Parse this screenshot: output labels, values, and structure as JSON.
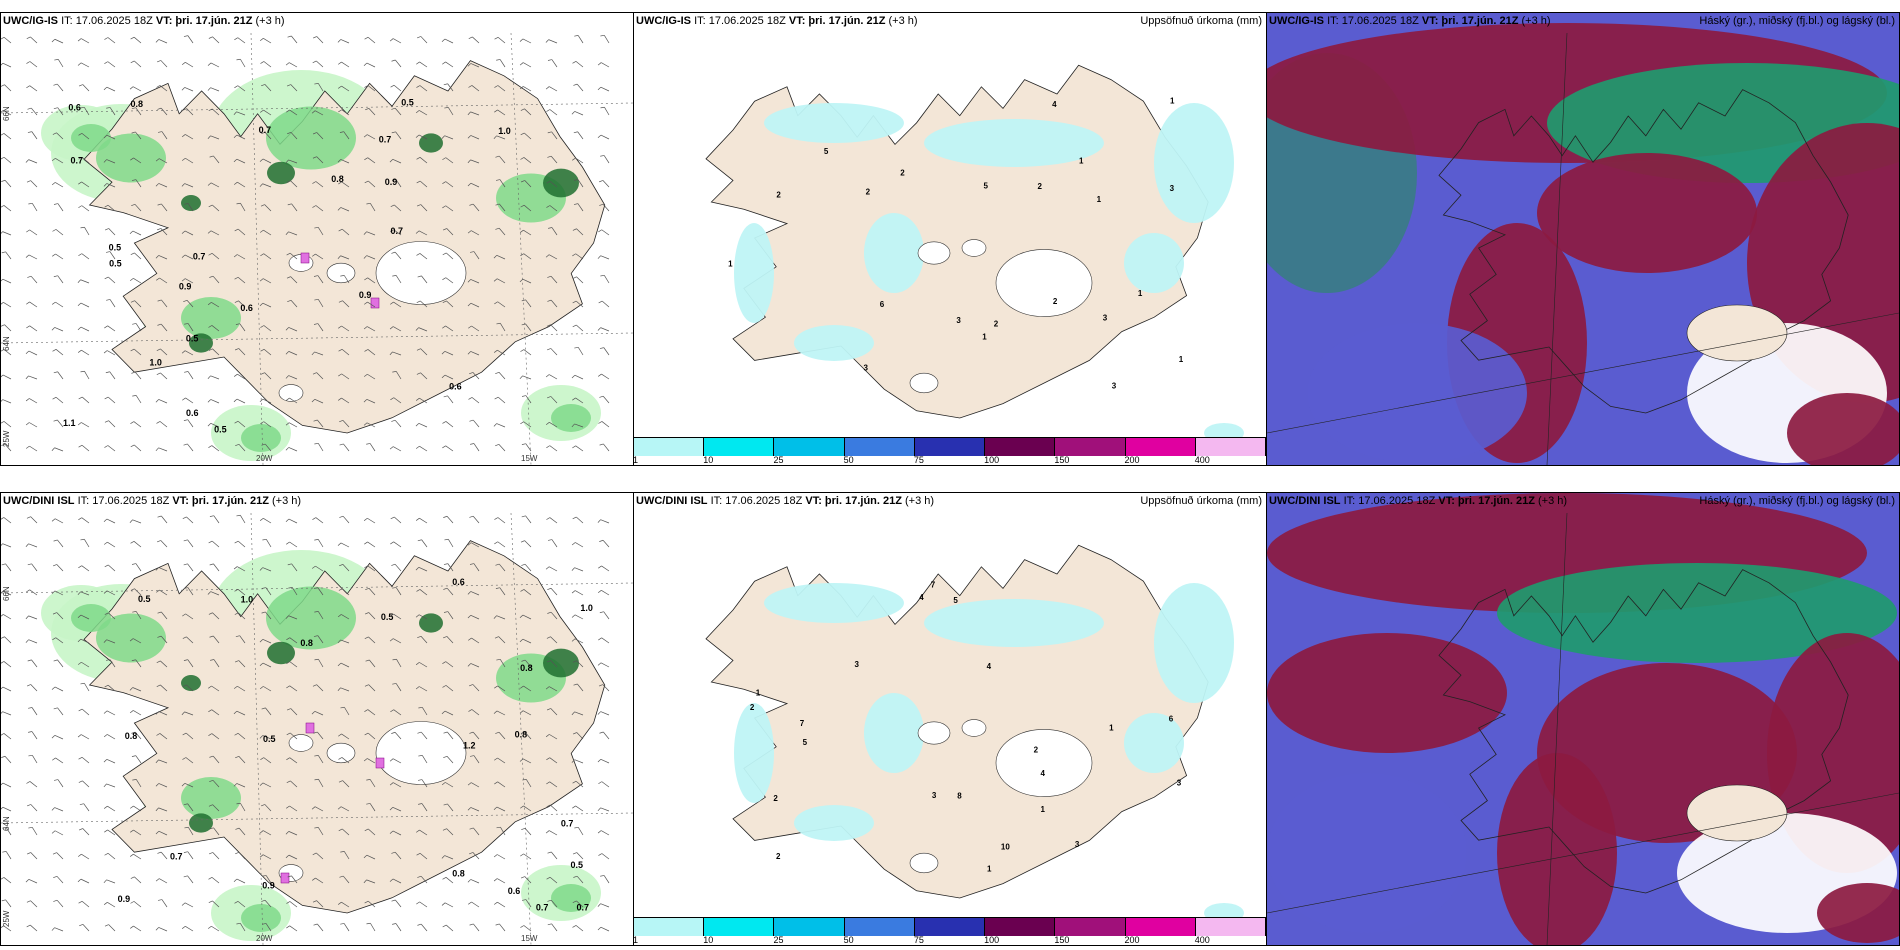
{
  "rows": [
    {
      "model": "UWC/IG-IS",
      "it": "IT: 17.06.2025 18Z",
      "vt_label": "VT:",
      "vt": "þri. 17.jún. 21Z",
      "lead": "(+3 h)"
    },
    {
      "model": "UWC/DINI ISL",
      "it": "IT: 17.06.2025 18Z",
      "vt_label": "VT:",
      "vt": "þri. 17.jún. 21Z",
      "lead": "(+3 h)"
    }
  ],
  "precip_title": "Uppsöfnuð úrkoma (mm)",
  "cloud_title": "Háský (gr.), miðský (fj.bl.) og lágský (bl.)",
  "legend": {
    "ticks": [
      "1",
      "10",
      "25",
      "50",
      "75",
      "100",
      "150",
      "200",
      "400"
    ],
    "colors": [
      "#b7f6f6",
      "#00e8f0",
      "#00bfe8",
      "#3a7be0",
      "#2830b0",
      "#6a0050",
      "#a0107a",
      "#e000a0",
      "#f4b8f0"
    ]
  },
  "coords": {
    "lat66": "66N",
    "lat64": "64N",
    "lon20": "20W",
    "lon15": "15W",
    "lon25": "25W"
  },
  "colors": {
    "land": "#f3e6d7",
    "wind_green_light": "#c8f5c8",
    "wind_green": "#7fd98a",
    "wind_dark": "#1e6e30",
    "precip_light": "#bff4f6",
    "cloud_teal": "#3a7c86",
    "cloud_blue": "#5a5cd0",
    "cloud_red": "#8c1a40",
    "cloud_green": "#1f9a6e"
  },
  "labels_top_wind": [
    "1.0",
    "0.9",
    "0.6",
    "0.5",
    "0.7",
    "0.8",
    "1.1",
    "0.9",
    "0.6",
    "0.5",
    "0.7",
    "1.0",
    "0.8",
    "0.6",
    "0.5",
    "0.7",
    "0.5",
    "0.6",
    "0.9",
    "0.7",
    "0.7",
    "0.5"
  ],
  "labels_bottom_wind": [
    "0.8",
    "1.0",
    "0.5",
    "0.8",
    "0.7",
    "0.6",
    "0.9",
    "0.8",
    "0.7",
    "0.6",
    "0.5",
    "1.2",
    "0.9",
    "0.7",
    "0.8",
    "1.0",
    "0.5",
    "0.8",
    "0.7",
    "0.5"
  ],
  "labels_top_precip": [
    "1",
    "2",
    "3",
    "1",
    "4",
    "2",
    "3",
    "2",
    "1",
    "5",
    "2",
    "1",
    "2",
    "3",
    "1",
    "2",
    "3",
    "1",
    "6",
    "1",
    "5",
    "3"
  ],
  "labels_bottom_precip": [
    "2",
    "4",
    "3",
    "1",
    "5",
    "2",
    "7",
    "1",
    "10",
    "3",
    "2",
    "8",
    "4",
    "1",
    "5",
    "6",
    "2",
    "3",
    "4",
    "1",
    "7",
    "3"
  ]
}
